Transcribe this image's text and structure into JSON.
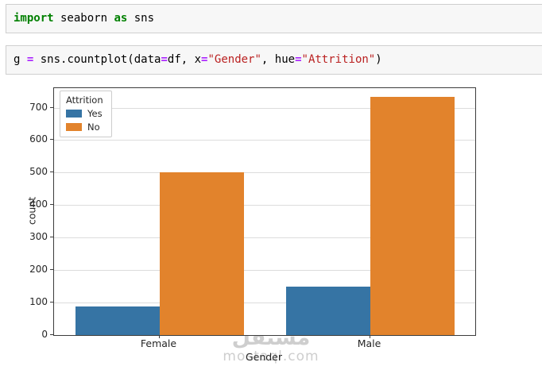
{
  "cells": [
    {
      "name": "import-cell",
      "tokens": [
        {
          "t": "import",
          "c": "k"
        },
        {
          "t": " seaborn ",
          "c": "p"
        },
        {
          "t": "as",
          "c": "k"
        },
        {
          "t": " sns",
          "c": "p"
        }
      ]
    },
    {
      "name": "countplot-cell",
      "tokens": [
        {
          "t": "g ",
          "c": "p"
        },
        {
          "t": "=",
          "c": "o"
        },
        {
          "t": " sns.countplot(data",
          "c": "p"
        },
        {
          "t": "=",
          "c": "o"
        },
        {
          "t": "df, x",
          "c": "p"
        },
        {
          "t": "=",
          "c": "o"
        },
        {
          "t": "\"Gender\"",
          "c": "s"
        },
        {
          "t": ", hue",
          "c": "p"
        },
        {
          "t": "=",
          "c": "o"
        },
        {
          "t": "\"Attrition\"",
          "c": "s"
        },
        {
          "t": ")",
          "c": "p"
        }
      ]
    }
  ],
  "chart_data": {
    "type": "bar",
    "title": "",
    "categories": [
      "Female",
      "Male"
    ],
    "series": [
      {
        "name": "Yes",
        "color": "#3674a4",
        "values": [
          87,
          150
        ]
      },
      {
        "name": "No",
        "color": "#e2832c",
        "values": [
          501,
          732
        ]
      }
    ],
    "xlabel": "Gender",
    "ylabel": "count",
    "ylim": [
      0,
      760
    ],
    "yticks": [
      0,
      100,
      200,
      300,
      400,
      500,
      600,
      700
    ],
    "grid": true,
    "legend": {
      "title": "Attrition",
      "position": "upper left"
    }
  },
  "watermark": {
    "line1": "مستقل",
    "line2": "mostaql.com"
  },
  "colors": {
    "bar_blue": "#3674a4",
    "bar_orange": "#e2832c",
    "cell_background": "#f7f7f7",
    "cell_border": "#cfcfcf",
    "keyword_green": "#008000",
    "operator_purple": "#aa22ff",
    "string_red": "#ba2121",
    "axis_gray": "#3c3c3c",
    "gridline_gray": "#dcdcdc",
    "watermark_gray": "#c6c6c6"
  }
}
